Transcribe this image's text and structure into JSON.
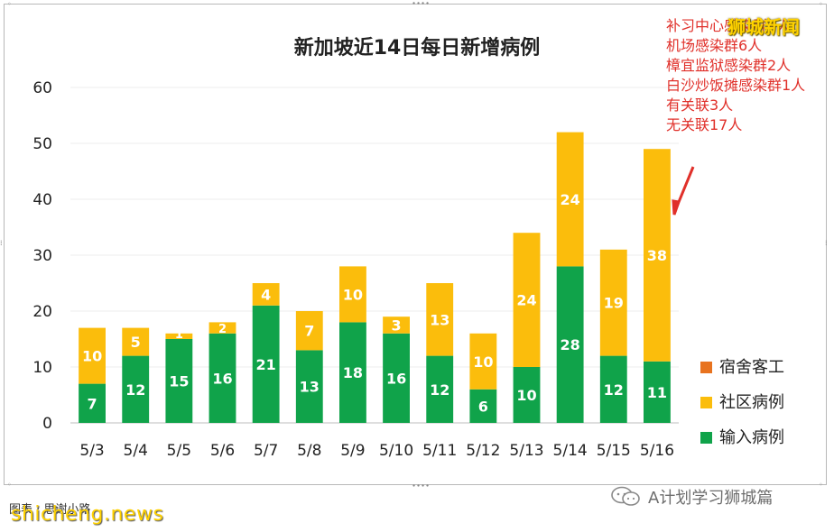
{
  "chart_data": {
    "type": "bar",
    "stacked": true,
    "title": "新加坡近14日每日新增病例",
    "categories": [
      "5/3",
      "5/4",
      "5/5",
      "5/6",
      "5/7",
      "5/8",
      "5/9",
      "5/10",
      "5/11",
      "5/12",
      "5/13",
      "5/14",
      "5/15",
      "5/16"
    ],
    "series": [
      {
        "name": "输入病例",
        "color": "#10a34a",
        "values": [
          7,
          12,
          15,
          16,
          21,
          13,
          18,
          16,
          12,
          6,
          10,
          28,
          12,
          11
        ]
      },
      {
        "name": "社区病例",
        "color": "#fbbd0c",
        "values": [
          10,
          5,
          1,
          2,
          4,
          7,
          10,
          3,
          13,
          10,
          24,
          24,
          19,
          38
        ]
      },
      {
        "name": "宿舍客工",
        "color": "#e8731f",
        "values": [
          0,
          0,
          0,
          0,
          0,
          0,
          0,
          0,
          0,
          0,
          0,
          0,
          0,
          0
        ]
      }
    ],
    "ylim": [
      0,
      60
    ],
    "yticks": [
      0,
      10,
      20,
      30,
      40,
      50,
      60
    ],
    "grid": true,
    "legend": "right"
  },
  "annotation": {
    "lines": [
      "补习中心感染群7人",
      "机场感染群6人",
      "樟宜监狱感染群2人",
      "白沙炒饭摊感染群1人",
      "有关联3人",
      "无关联17人"
    ],
    "arrow_color": "#e0302a"
  },
  "watermarks": {
    "brand": "狮城新闻",
    "site": "shicheng.news",
    "footer_left": "图表 ·  思谢小路",
    "wechat": "A计划学习狮城篇"
  }
}
